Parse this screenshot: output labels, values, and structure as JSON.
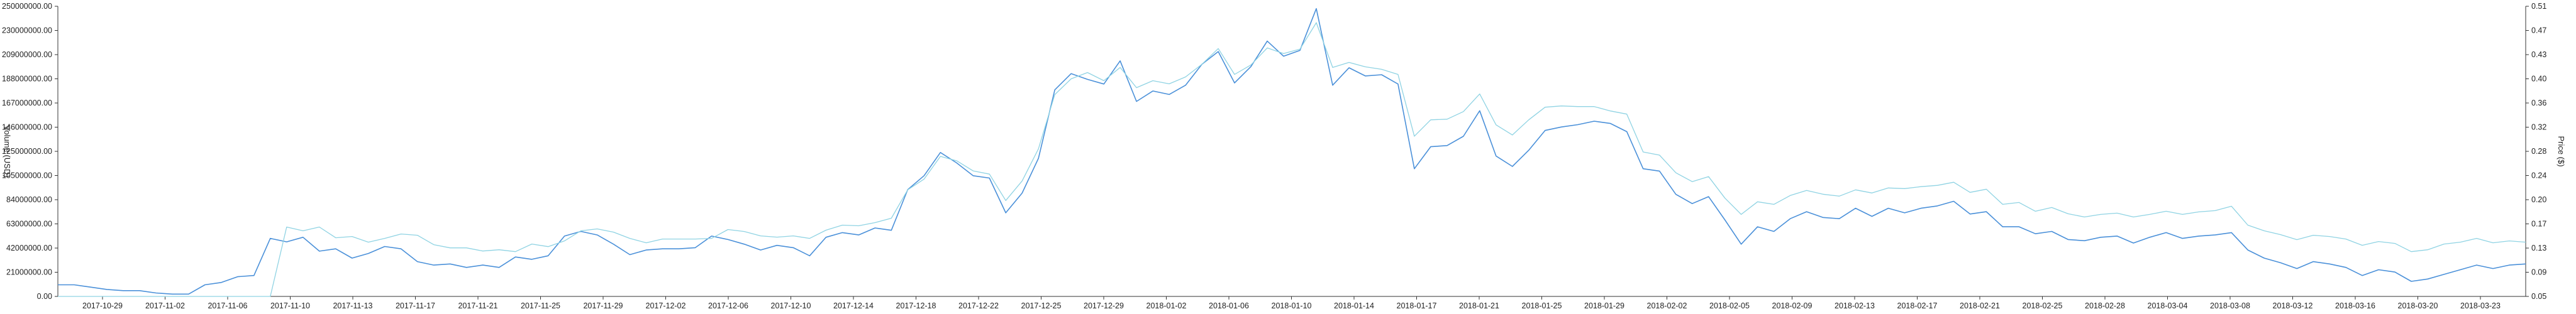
{
  "chart_data": {
    "type": "line",
    "title": "",
    "xlabel": "",
    "ylabel_left": "Volume (USD)",
    "ylabel_right": "Price ($)",
    "grid": false,
    "legend": "none",
    "x_tick_labels": [
      "2017-10-29",
      "2017-11-02",
      "2017-11-06",
      "2017-11-10",
      "2017-11-13",
      "2017-11-17",
      "2017-11-21",
      "2017-11-25",
      "2017-11-29",
      "2017-12-02",
      "2017-12-06",
      "2017-12-10",
      "2017-12-14",
      "2017-12-18",
      "2017-12-22",
      "2017-12-25",
      "2017-12-29",
      "2018-01-02",
      "2018-01-06",
      "2018-01-10",
      "2018-01-14",
      "2018-01-17",
      "2018-01-21",
      "2018-01-25",
      "2018-01-29",
      "2018-02-02",
      "2018-02-05",
      "2018-02-09",
      "2018-02-13",
      "2018-02-17",
      "2018-02-21",
      "2018-02-25",
      "2018-02-28",
      "2018-03-04",
      "2018-03-08",
      "2018-03-12",
      "2018-03-16",
      "2018-03-20",
      "2018-03-23"
    ],
    "y_left_ticks": [
      "0.00",
      "21000000.00",
      "42000000.00",
      "63000000.00",
      "84000000.00",
      "105000000.00",
      "125000000.00",
      "146000000.00",
      "167000000.00",
      "188000000.00",
      "209000000.00",
      "230000000.00",
      "250000000.00"
    ],
    "y_right_ticks": [
      "0.05",
      "0.09",
      "0.13",
      "0.17",
      "0.20",
      "0.24",
      "0.28",
      "0.32",
      "0.36",
      "0.40",
      "0.43",
      "0.47",
      "0.51"
    ],
    "ylim_left": [
      0,
      250000000
    ],
    "ylim_right": [
      0.05,
      0.51
    ],
    "series": [
      {
        "axis": "left",
        "color": "#4a90d9",
        "values": [
          10000000,
          10000000,
          8000000,
          6000000,
          5000000,
          5000000,
          3000000,
          2000000,
          2000000,
          10000000,
          12000000,
          17000000,
          18000000,
          50000000,
          47000000,
          51000000,
          39000000,
          41000000,
          33000000,
          37000000,
          43000000,
          41000000,
          30000000,
          27000000,
          28000000,
          25000000,
          27000000,
          25000000,
          34000000,
          32000000,
          35000000,
          52000000,
          56000000,
          53000000,
          45000000,
          36000000,
          40000000,
          41000000,
          41000000,
          42000000,
          52000000,
          49000000,
          45000000,
          40000000,
          44000000,
          42000000,
          35000000,
          51000000,
          55000000,
          53000000,
          59000000,
          57000000,
          92000000,
          104000000,
          124000000,
          115000000,
          104000000,
          102000000,
          72000000,
          89000000,
          119000000,
          178000000,
          192000000,
          187000000,
          183000000,
          203000000,
          168000000,
          177000000,
          174000000,
          182000000,
          200000000,
          211000000,
          184000000,
          198000000,
          220000000,
          207000000,
          212000000,
          248000000,
          182000000,
          197000000,
          190000000,
          191000000,
          183000000,
          110000000,
          129000000,
          130000000,
          138000000,
          160000000,
          121000000,
          112000000,
          126000000,
          143000000,
          146000000,
          148000000,
          151000000,
          149000000,
          142000000,
          110000000,
          108000000,
          88000000,
          80000000,
          86000000,
          66000000,
          45000000,
          60000000,
          56000000,
          67000000,
          73000000,
          68000000,
          67000000,
          76000000,
          69000000,
          76000000,
          72000000,
          76000000,
          78000000,
          82000000,
          71000000,
          73000000,
          60000000,
          60000000,
          54000000,
          56000000,
          49000000,
          48000000,
          51000000,
          52000000,
          46000000,
          51000000,
          55000000,
          50000000,
          52000000,
          53000000,
          55000000,
          40000000,
          33000000,
          29000000,
          24000000,
          30000000,
          28000000,
          25000000,
          18000000,
          23000000,
          21000000,
          13000000,
          15000000,
          19000000,
          23000000,
          27000000,
          24000000,
          27000000,
          28000000
        ]
      },
      {
        "axis": "right",
        "color": "#8fd3e3",
        "values": [
          0.05,
          0.05,
          0.05,
          0.05,
          0.05,
          0.05,
          0.05,
          0.05,
          0.05,
          0.05,
          0.05,
          0.05,
          0.05,
          0.05,
          0.16,
          0.154,
          0.16,
          0.143,
          0.145,
          0.136,
          0.142,
          0.149,
          0.147,
          0.132,
          0.127,
          0.127,
          0.122,
          0.124,
          0.121,
          0.133,
          0.129,
          0.138,
          0.154,
          0.157,
          0.152,
          0.142,
          0.135,
          0.141,
          0.141,
          0.141,
          0.142,
          0.156,
          0.153,
          0.146,
          0.144,
          0.146,
          0.142,
          0.155,
          0.163,
          0.162,
          0.167,
          0.174,
          0.219,
          0.236,
          0.272,
          0.265,
          0.249,
          0.244,
          0.202,
          0.233,
          0.284,
          0.37,
          0.395,
          0.405,
          0.392,
          0.413,
          0.381,
          0.392,
          0.387,
          0.398,
          0.418,
          0.443,
          0.402,
          0.417,
          0.444,
          0.435,
          0.442,
          0.484,
          0.413,
          0.421,
          0.414,
          0.41,
          0.402,
          0.304,
          0.33,
          0.331,
          0.343,
          0.371,
          0.322,
          0.306,
          0.33,
          0.35,
          0.352,
          0.351,
          0.351,
          0.344,
          0.339,
          0.279,
          0.274,
          0.246,
          0.232,
          0.24,
          0.206,
          0.18,
          0.2,
          0.196,
          0.21,
          0.218,
          0.212,
          0.209,
          0.219,
          0.214,
          0.222,
          0.221,
          0.224,
          0.226,
          0.231,
          0.215,
          0.22,
          0.196,
          0.199,
          0.185,
          0.191,
          0.181,
          0.176,
          0.18,
          0.182,
          0.176,
          0.18,
          0.185,
          0.18,
          0.184,
          0.186,
          0.193,
          0.163,
          0.154,
          0.148,
          0.14,
          0.147,
          0.145,
          0.141,
          0.131,
          0.137,
          0.134,
          0.121,
          0.124,
          0.133,
          0.136,
          0.142,
          0.135,
          0.138,
          0.136
        ]
      }
    ]
  }
}
